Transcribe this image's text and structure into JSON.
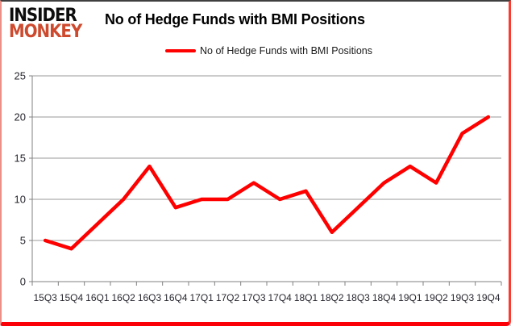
{
  "header": {
    "logo_line1": "INSIDER",
    "logo_line2": "MONKEY",
    "title": "No of Hedge Funds with BMI Positions"
  },
  "legend": {
    "label": "No of Hedge Funds with BMI Positions"
  },
  "colors": {
    "series_line": "#FE0000",
    "logo_red": "#CE4A2E",
    "logo_black": "#0D0D0D",
    "gridline": "#9a9a9a",
    "axis": "#808080",
    "tick_label": "#26262e",
    "border_red": "#FB0007"
  },
  "chart_data": {
    "type": "line",
    "title": "No of Hedge Funds with BMI Positions",
    "categories": [
      "15Q3",
      "15Q4",
      "16Q1",
      "16Q2",
      "16Q3",
      "16Q4",
      "17Q1",
      "17Q2",
      "17Q3",
      "17Q4",
      "18Q1",
      "18Q2",
      "18Q3",
      "18Q4",
      "19Q1",
      "19Q2",
      "19Q3",
      "19Q4"
    ],
    "series": [
      {
        "name": "No of Hedge Funds with BMI Positions",
        "color": "#FE0000",
        "values": [
          5,
          4,
          7,
          10,
          14,
          9,
          10,
          10,
          12,
          10,
          11,
          6,
          9,
          12,
          14,
          12,
          18,
          20
        ]
      }
    ],
    "xlabel": "",
    "ylabel": "",
    "ylim": [
      0,
      25
    ],
    "ytick_interval": 5,
    "yticks": [
      0,
      5,
      10,
      15,
      20,
      25
    ],
    "grid": true,
    "legend_position": "top-center"
  }
}
